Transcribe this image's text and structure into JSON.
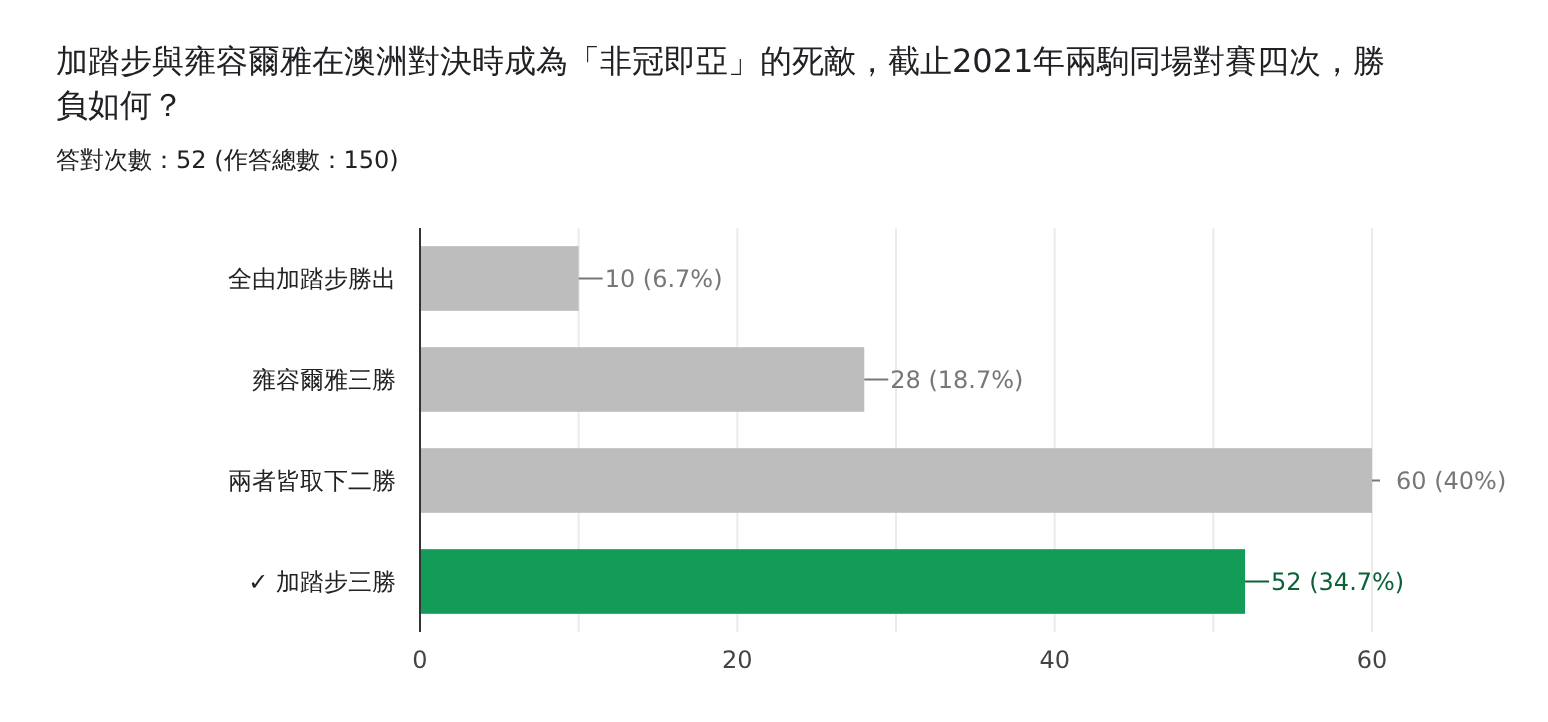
{
  "chart_data": {
    "type": "bar",
    "orientation": "horizontal",
    "title": "加踏步與雍容爾雅在澳洲對決時成為「非冠即亞」的死敵，截止2021年兩駒同場對賽四次，勝負如何？",
    "subtitle": "答對次數：52 (作答總數：150)",
    "categories": [
      "全由加踏步勝出",
      "雍容爾雅三勝",
      "兩者皆取下二勝",
      "✓ 加踏步三勝"
    ],
    "values": [
      10,
      28,
      60,
      52
    ],
    "colors": [
      "#bdbdbd",
      "#bdbdbd",
      "#bdbdbd",
      "#129c57"
    ],
    "value_labels": [
      "10 (6.7%)",
      "28 (18.7%)",
      "60 (40%)",
      "52 (34.7%)"
    ],
    "xlim": [
      0,
      60
    ],
    "xticks": [
      0,
      {
        "value": 10,
        "label": null
      },
      20,
      {
        "value": 30,
        "label": null
      },
      40,
      {
        "value": 50,
        "label": null
      },
      60
    ],
    "grid": "x"
  }
}
